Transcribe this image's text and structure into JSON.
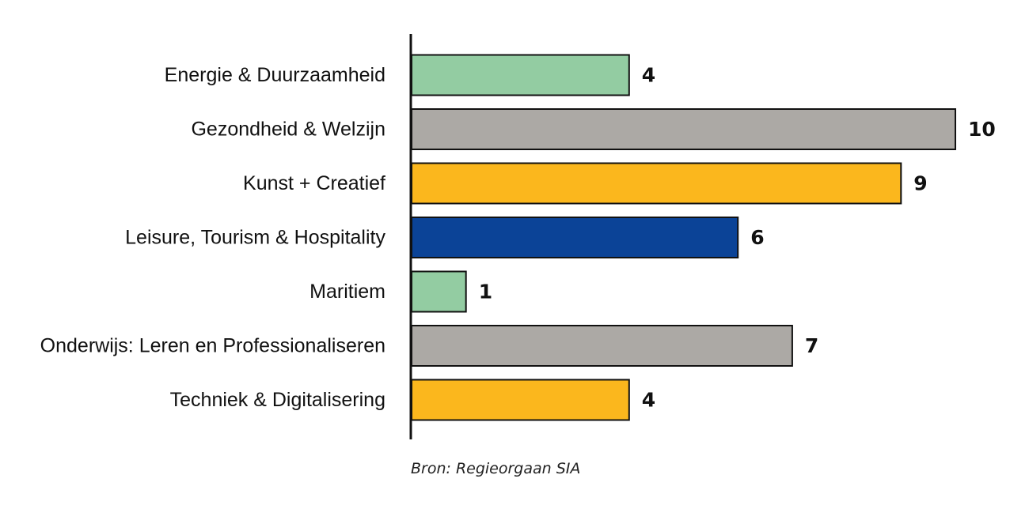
{
  "chart_data": {
    "type": "bar",
    "orientation": "horizontal",
    "categories": [
      "Energie & Duurzaamheid",
      "Gezondheid & Welzijn",
      "Kunst + Creatief",
      "Leisure, Tourism & Hospitality",
      "Maritiem",
      "Onderwijs: Leren en Professionaliseren",
      "Techniek & Digitalisering"
    ],
    "values": [
      4,
      10,
      9,
      6,
      1,
      7,
      4
    ],
    "colors": [
      "#93cca2",
      "#aca9a5",
      "#fbb71d",
      "#0b4397",
      "#93cca2",
      "#aca9a5",
      "#fbb71d"
    ],
    "xlim": [
      0,
      10
    ],
    "grid": false,
    "legend": "none",
    "title": "",
    "xlabel": "",
    "ylabel": "",
    "source": "Bron: Regieorgaan SIA"
  }
}
